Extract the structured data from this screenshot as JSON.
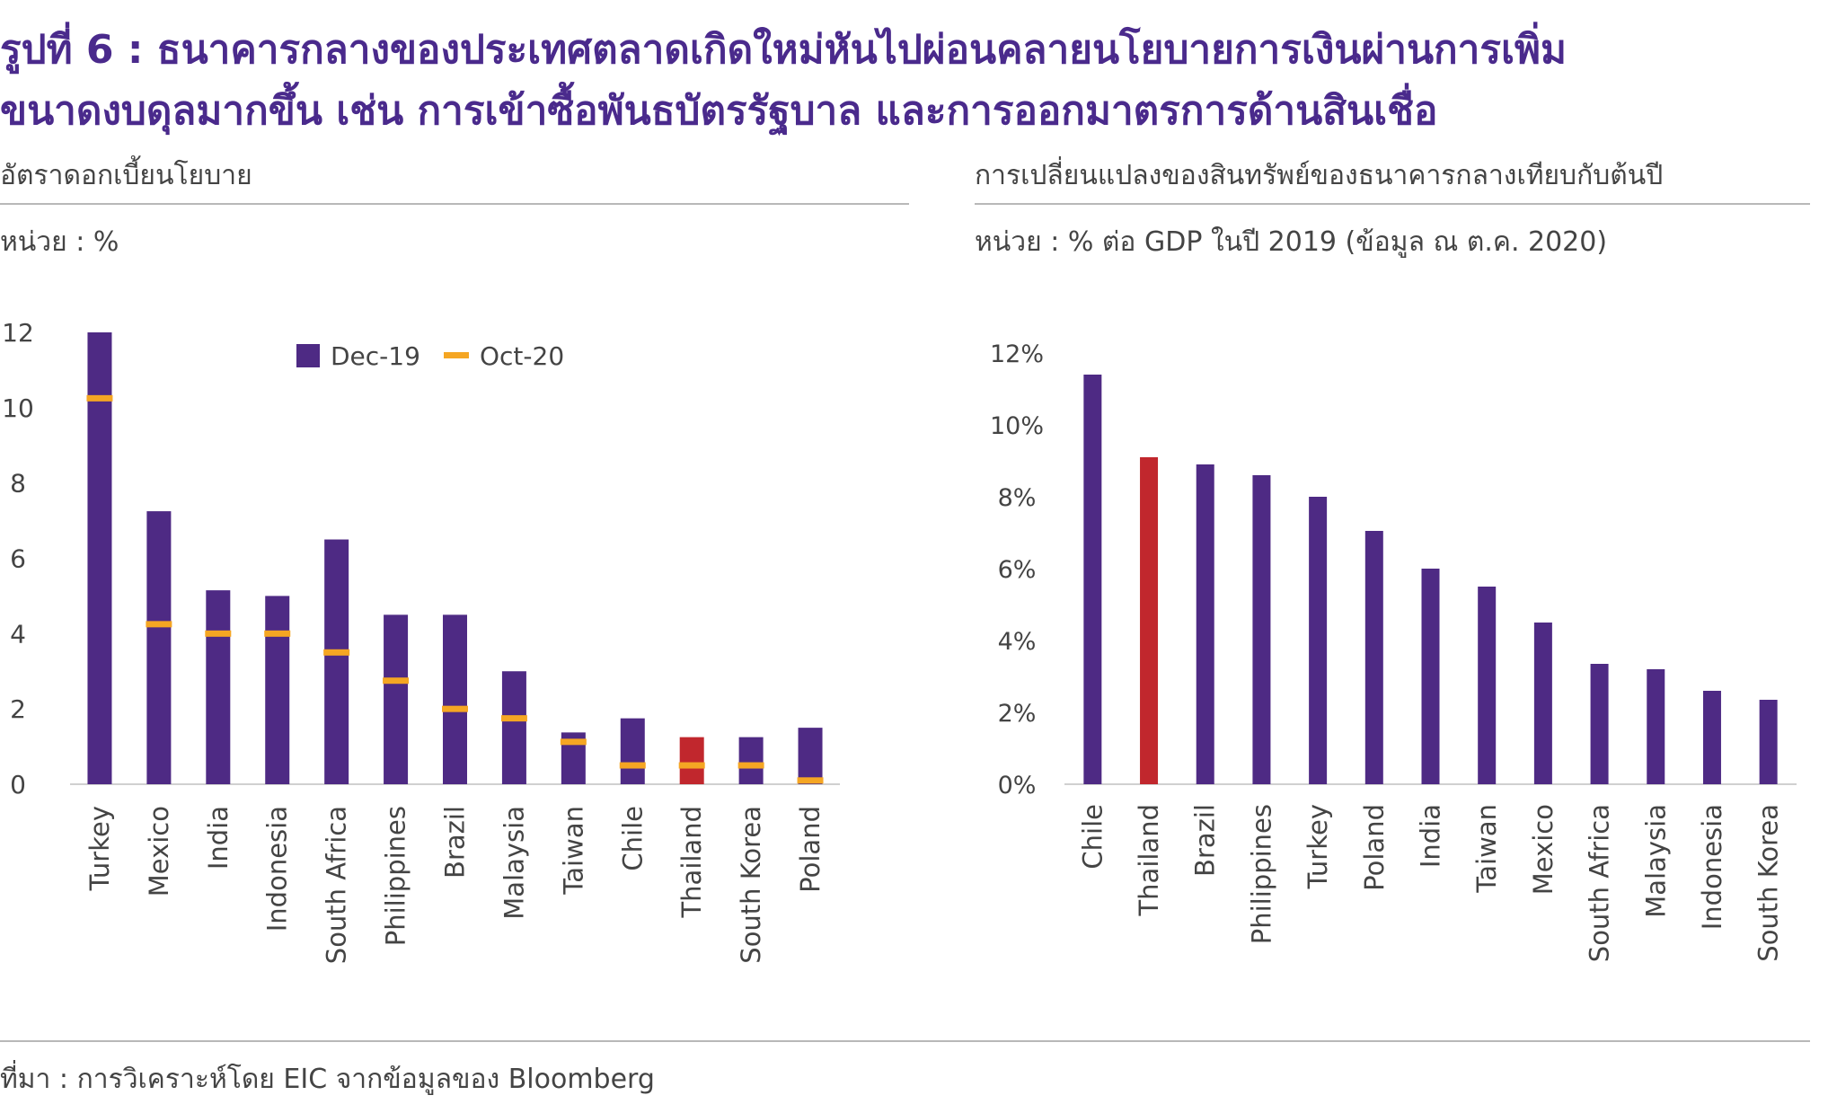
{
  "figure": {
    "title_line1": "รูปที่ 6 : ธนาคารกลางของประเทศตลาดเกิดใหม่หันไปผ่อนคลายนโยบายการเงินผ่านการเพิ่ม",
    "title_line2": "ขนาดงบดุลมากขึ้น เช่น การเข้าซื้อพันธบัตรรัฐบาล และการออกมาตรการด้านสินเชื่อ",
    "source": "ที่มา : การวิเคราะห์โดย EIC จากข้อมูลของ Bloomberg"
  },
  "colors": {
    "title": "#4a2a8c",
    "bar": "#4e2a84",
    "highlight": "#c1272d",
    "marker": "#f5a623",
    "axis": "#d0d0d0",
    "text": "#444444"
  },
  "chart_data": [
    {
      "type": "bar",
      "title": "อัตราดอกเบี้ยนโยบาย",
      "unit": "หน่วย : %",
      "categories": [
        "Turkey",
        "Mexico",
        "India",
        "Indonesia",
        "South Africa",
        "Philippines",
        "Brazil",
        "Malaysia",
        "Taiwan",
        "Chile",
        "Thailand",
        "South Korea",
        "Poland"
      ],
      "series": [
        {
          "name": "Dec-19",
          "kind": "bar",
          "values": [
            12.0,
            7.25,
            5.15,
            5.0,
            6.5,
            4.5,
            4.5,
            3.0,
            1.375,
            1.75,
            1.25,
            1.25,
            1.5
          ]
        },
        {
          "name": "Oct-20",
          "kind": "marker",
          "values": [
            10.25,
            4.25,
            4.0,
            4.0,
            3.5,
            2.75,
            2.0,
            1.75,
            1.125,
            0.5,
            0.5,
            0.5,
            0.1
          ]
        }
      ],
      "highlight": "Thailand",
      "ylim": [
        0,
        12
      ],
      "yticks": [
        "0",
        "2",
        "4",
        "6",
        "8",
        "10",
        "12"
      ],
      "legend": "top-center",
      "grid": false
    },
    {
      "type": "bar",
      "title": "การเปลี่ยนแปลงของสินทรัพย์ของธนาคารกลางเทียบกับต้นปี",
      "unit": "หน่วย : % ต่อ GDP ในปี 2019 (ข้อมูล ณ ต.ค. 2020)",
      "categories": [
        "Chile",
        "Thailand",
        "Brazil",
        "Philippines",
        "Turkey",
        "Poland",
        "India",
        "Taiwan",
        "Mexico",
        "South Africa",
        "Malaysia",
        "Indonesia",
        "South Korea"
      ],
      "values": [
        11.4,
        9.1,
        8.9,
        8.6,
        8.0,
        7.05,
        6.0,
        5.5,
        4.5,
        3.35,
        3.2,
        2.6,
        2.35
      ],
      "highlight": "Thailand",
      "ylim": [
        0,
        12
      ],
      "yticks": [
        "0%",
        "2%",
        "4%",
        "6%",
        "8%",
        "10%",
        "12%"
      ],
      "grid": false
    }
  ]
}
